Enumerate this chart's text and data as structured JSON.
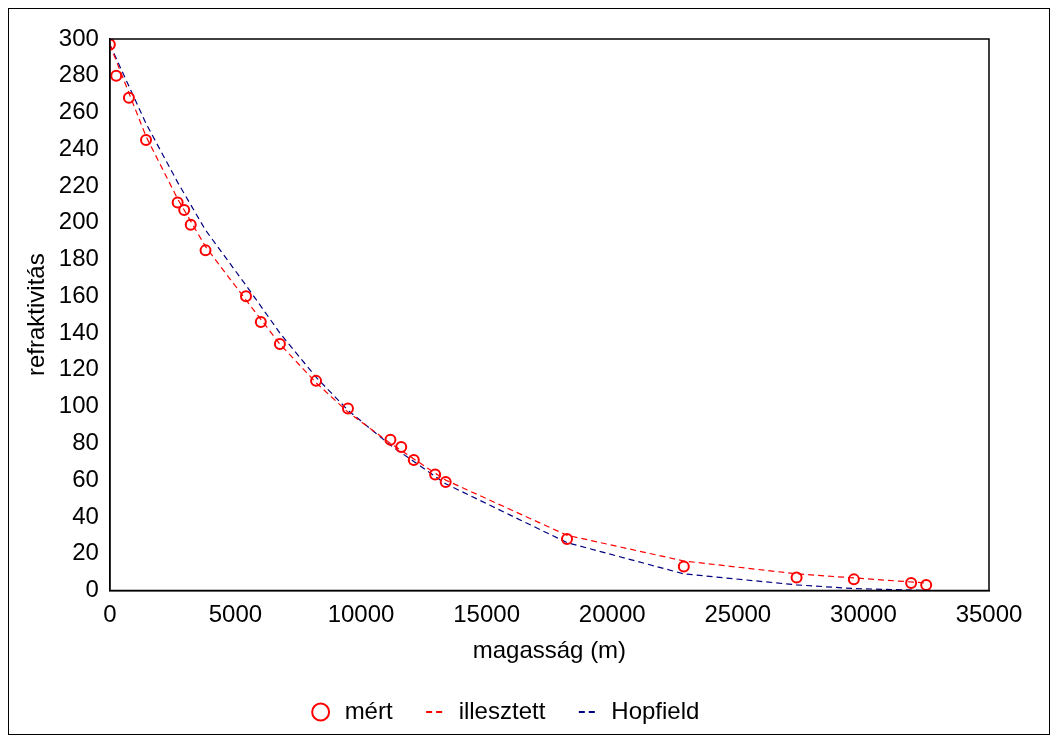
{
  "chart_data": {
    "type": "scatter",
    "xlabel": "magasság (m)",
    "ylabel": "refraktivitás",
    "xlim": [
      0,
      35000
    ],
    "xticks": [
      0,
      5000,
      10000,
      15000,
      20000,
      25000,
      30000,
      35000
    ],
    "ylim": [
      0,
      300
    ],
    "yticks": [
      0,
      20,
      40,
      60,
      80,
      100,
      120,
      140,
      160,
      180,
      200,
      220,
      240,
      260,
      280,
      300
    ],
    "legend": "bottom",
    "series": [
      {
        "name": "mért",
        "color": "#ff0000",
        "marker": "circle",
        "x": [
          0,
          254,
          760,
          1440,
          2700,
          2960,
          3220,
          3810,
          5420,
          6010,
          6770,
          8210,
          9480,
          11170,
          11600,
          12100,
          12950,
          13370,
          18200,
          22850,
          27340,
          29620,
          31900,
          32500
        ],
        "values": [
          297,
          280,
          268,
          245,
          211,
          207,
          199,
          185,
          160,
          146,
          134,
          114,
          99,
          82,
          78,
          71,
          63,
          59,
          28,
          13,
          7,
          6,
          4,
          3
        ]
      },
      {
        "name": "illesztett",
        "type": "line",
        "color": "#ff0000",
        "line_style": "dashed",
        "marker": "none",
        "x": [
          0,
          1440,
          2700,
          3810,
          5420,
          6770,
          8210,
          9480,
          11170,
          13370,
          18200,
          22850,
          27340,
          32500
        ],
        "values": [
          297,
          247,
          213,
          187,
          158,
          134,
          113,
          97,
          80,
          60,
          30,
          16,
          9,
          4
        ]
      },
      {
        "name": "Hopfield",
        "type": "line",
        "color": "#000080",
        "line_style": "dashed",
        "marker": "none",
        "x": [
          0,
          1440,
          2700,
          3810,
          5420,
          6770,
          8210,
          9480,
          11170,
          13370,
          18200,
          22850,
          27340,
          29620,
          32500
        ],
        "values": [
          297,
          254,
          222,
          196,
          166,
          140,
          116,
          98,
          79,
          58,
          26,
          9,
          3,
          1,
          0
        ]
      }
    ]
  }
}
